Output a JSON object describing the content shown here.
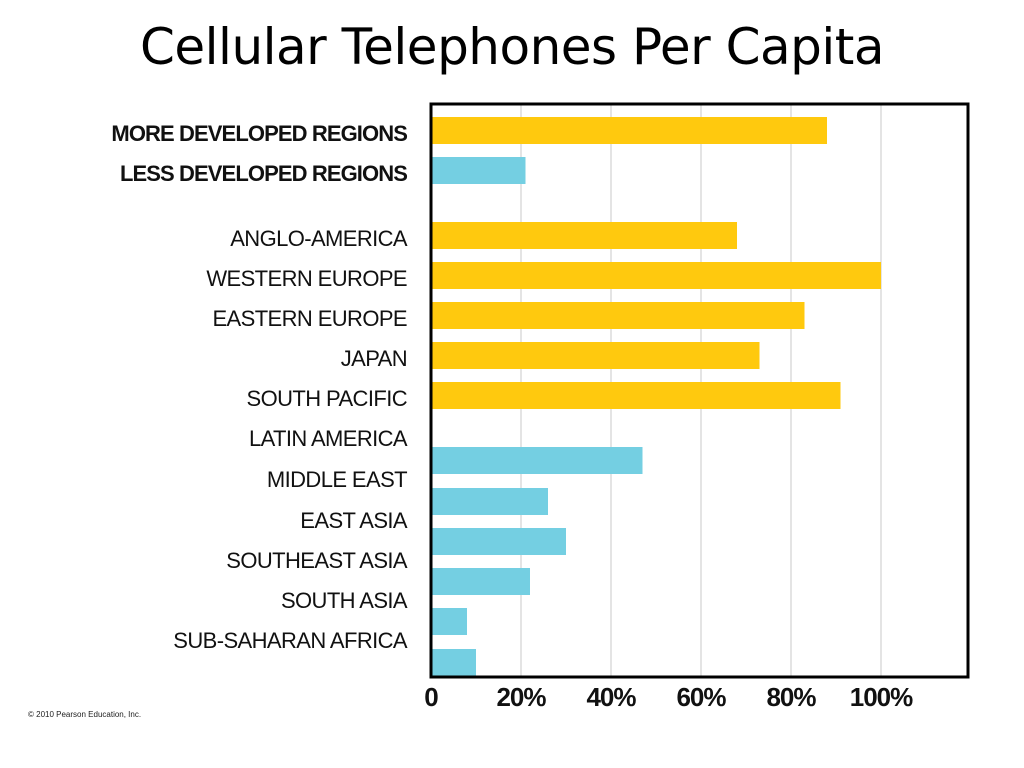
{
  "slide": {
    "title": "Cellular Telephones Per Capita",
    "copyright": "© 2010 Pearson Education, Inc."
  },
  "colors": {
    "more_developed": "#FFC90E",
    "less_developed": "#74CFE2",
    "gridline": "#c8c8c8",
    "axis": "#000000"
  },
  "chart_data": {
    "type": "bar",
    "orientation": "horizontal",
    "title": "Cellular Telephones Per Capita",
    "xlabel": "",
    "ylabel": "",
    "xlim": [
      0,
      120
    ],
    "x_ticks": [
      {
        "value": 0,
        "label": "0"
      },
      {
        "value": 20,
        "label": "20%"
      },
      {
        "value": 40,
        "label": "40%"
      },
      {
        "value": 60,
        "label": "60%"
      },
      {
        "value": 80,
        "label": "80%"
      },
      {
        "value": 100,
        "label": "100%"
      }
    ],
    "grid": "vertical",
    "labels": [
      {
        "text": "MORE DEVELOPED REGIONS",
        "bold": true
      },
      {
        "text": "LESS DEVELOPED REGIONS",
        "bold": true
      },
      {
        "text": "ANGLO-AMERICA",
        "bold": false
      },
      {
        "text": "WESTERN EUROPE",
        "bold": false
      },
      {
        "text": "EASTERN EUROPE",
        "bold": false
      },
      {
        "text": "JAPAN",
        "bold": false
      },
      {
        "text": "SOUTH PACIFIC",
        "bold": false
      },
      {
        "text": "LATIN AMERICA",
        "bold": false
      },
      {
        "text": "MIDDLE EAST",
        "bold": false
      },
      {
        "text": "EAST ASIA",
        "bold": false
      },
      {
        "text": "SOUTHEAST ASIA",
        "bold": false
      },
      {
        "text": "SOUTH ASIA",
        "bold": false
      },
      {
        "text": "SUB-SAHARAN AFRICA",
        "bold": false
      }
    ],
    "bars": [
      {
        "value": 88,
        "group": "more_developed"
      },
      {
        "value": 21,
        "group": "less_developed"
      },
      {
        "value": 68,
        "group": "more_developed"
      },
      {
        "value": 100,
        "group": "more_developed"
      },
      {
        "value": 83,
        "group": "more_developed"
      },
      {
        "value": 73,
        "group": "more_developed"
      },
      {
        "value": 91,
        "group": "more_developed"
      },
      {
        "value": 47,
        "group": "less_developed"
      },
      {
        "value": 26,
        "group": "less_developed"
      },
      {
        "value": 30,
        "group": "less_developed"
      },
      {
        "value": 22,
        "group": "less_developed"
      },
      {
        "value": 8,
        "group": "less_developed"
      },
      {
        "value": 10,
        "group": "less_developed"
      }
    ]
  }
}
